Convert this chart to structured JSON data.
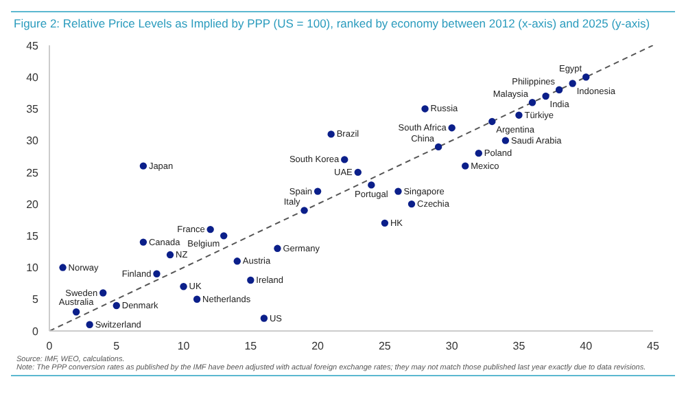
{
  "chart_data": {
    "type": "scatter",
    "title": "Figure 2: Relative Price Levels as Implied by PPP (US = 100), ranked by economy between 2012 (x-axis) and 2025 (y-axis)",
    "xlim": [
      0,
      45
    ],
    "xticks": [
      0,
      5,
      10,
      15,
      20,
      25,
      30,
      35,
      40,
      45
    ],
    "ylim": [
      0,
      45
    ],
    "yticks": [
      0,
      5,
      10,
      15,
      20,
      25,
      30,
      35,
      40,
      45
    ],
    "marker": "circle",
    "series": [
      {
        "type": "line",
        "color": "#555555",
        "line_style": "dashed",
        "marker": "none",
        "x": [
          0,
          45
        ],
        "values": [
          0,
          45
        ]
      },
      {
        "color": "#0b1f8a",
        "x": [
          1,
          7,
          12,
          13,
          9,
          8,
          4,
          2,
          5,
          3,
          10,
          11,
          14,
          15,
          16,
          17,
          19,
          20,
          21,
          22,
          7,
          23,
          24,
          26,
          27,
          25,
          28,
          30,
          33,
          29,
          36,
          35,
          37,
          38,
          39,
          40,
          34,
          32,
          31
        ],
        "values": [
          10,
          14,
          16,
          15,
          12,
          9,
          6,
          3,
          4,
          1,
          7,
          5,
          11,
          8,
          2,
          13,
          19,
          22,
          31,
          27,
          26,
          25,
          23,
          22,
          20,
          17,
          35,
          32,
          33,
          29,
          36,
          34,
          37,
          38,
          39,
          40,
          30,
          28,
          26
        ]
      }
    ],
    "annotations": [
      {
        "text": "Norway",
        "x": 1,
        "y": 10
      },
      {
        "text": "Canada",
        "x": 7,
        "y": 14
      },
      {
        "text": "France",
        "x": 12,
        "y": 16
      },
      {
        "text": "Belgium",
        "x": 13,
        "y": 15
      },
      {
        "text": "NZ",
        "x": 9,
        "y": 12
      },
      {
        "text": "Finland",
        "x": 8,
        "y": 9
      },
      {
        "text": "Sweden",
        "x": 4,
        "y": 6
      },
      {
        "text": "Australia",
        "x": 2,
        "y": 3
      },
      {
        "text": "Denmark",
        "x": 5,
        "y": 4
      },
      {
        "text": "Switzerland",
        "x": 3,
        "y": 1
      },
      {
        "text": "UK",
        "x": 10,
        "y": 7
      },
      {
        "text": "Netherlands",
        "x": 11,
        "y": 5
      },
      {
        "text": "Austria",
        "x": 14,
        "y": 11
      },
      {
        "text": "Ireland",
        "x": 15,
        "y": 8
      },
      {
        "text": "US",
        "x": 16,
        "y": 2
      },
      {
        "text": "Germany",
        "x": 17,
        "y": 13
      },
      {
        "text": "Italy",
        "x": 19,
        "y": 19
      },
      {
        "text": "Spain",
        "x": 20,
        "y": 22
      },
      {
        "text": "Brazil",
        "x": 21,
        "y": 31
      },
      {
        "text": "South Korea",
        "x": 22,
        "y": 27
      },
      {
        "text": "Japan",
        "x": 7,
        "y": 26
      },
      {
        "text": "UAE",
        "x": 23,
        "y": 25
      },
      {
        "text": "Portugal",
        "x": 24,
        "y": 23
      },
      {
        "text": "Singapore",
        "x": 26,
        "y": 22
      },
      {
        "text": "Czechia",
        "x": 27,
        "y": 20
      },
      {
        "text": "HK",
        "x": 25,
        "y": 17
      },
      {
        "text": "Russia",
        "x": 28,
        "y": 35
      },
      {
        "text": "South Africa",
        "x": 30,
        "y": 32
      },
      {
        "text": "Argentina",
        "x": 33,
        "y": 33
      },
      {
        "text": "China",
        "x": 29,
        "y": 29
      },
      {
        "text": "Malaysia",
        "x": 36,
        "y": 36
      },
      {
        "text": "Türkiye",
        "x": 35,
        "y": 34
      },
      {
        "text": "India",
        "x": 37,
        "y": 37
      },
      {
        "text": "Philippines",
        "x": 38,
        "y": 38
      },
      {
        "text": "Indonesia",
        "x": 39,
        "y": 39
      },
      {
        "text": "Egypt",
        "x": 40,
        "y": 40
      },
      {
        "text": "Saudi Arabia",
        "x": 34,
        "y": 30
      },
      {
        "text": "Poland",
        "x": 32,
        "y": 28
      },
      {
        "text": "Mexico",
        "x": 31,
        "y": 26
      },
      "Source: IMF, WEO, calculations.",
      "Note: The PPP conversion rates as published by the IMF have been adjusted with actual foreign exchange rates; they may not match those published last year exactly due to data revisions."
    ]
  }
}
